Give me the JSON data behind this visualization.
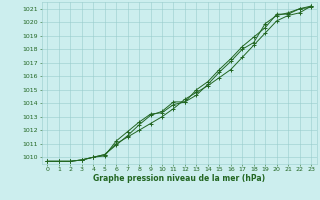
{
  "xlabel": "Graphe pression niveau de la mer (hPa)",
  "ylim": [
    1009.5,
    1021.5
  ],
  "xlim": [
    -0.5,
    23.5
  ],
  "yticks": [
    1010,
    1011,
    1012,
    1013,
    1014,
    1015,
    1016,
    1017,
    1018,
    1019,
    1020,
    1021
  ],
  "xticks": [
    0,
    1,
    2,
    3,
    4,
    5,
    6,
    7,
    8,
    9,
    10,
    11,
    12,
    13,
    14,
    15,
    16,
    17,
    18,
    19,
    20,
    21,
    22,
    23
  ],
  "bg_color": "#cceeee",
  "grid_color": "#99cccc",
  "line_color": "#226622",
  "series1": [
    1009.7,
    1009.7,
    1009.7,
    1009.8,
    1010.0,
    1010.1,
    1011.2,
    1011.9,
    1012.6,
    1013.2,
    1013.3,
    1013.9,
    1014.1,
    1014.6,
    1015.4,
    1016.3,
    1017.1,
    1018.0,
    1018.5,
    1019.9,
    1020.5,
    1020.7,
    1021.0,
    1021.1
  ],
  "series2": [
    1009.7,
    1009.7,
    1009.7,
    1009.8,
    1010.0,
    1010.2,
    1010.9,
    1011.6,
    1012.4,
    1013.1,
    1013.4,
    1014.1,
    1014.1,
    1015.0,
    1015.6,
    1016.5,
    1017.3,
    1018.2,
    1018.9,
    1019.6,
    1020.6,
    1020.6,
    1021.0,
    1021.2
  ],
  "series3": [
    1009.7,
    1009.7,
    1009.7,
    1009.8,
    1010.0,
    1010.2,
    1011.0,
    1011.5,
    1012.0,
    1012.5,
    1013.0,
    1013.6,
    1014.3,
    1014.8,
    1015.3,
    1015.9,
    1016.5,
    1017.4,
    1018.3,
    1019.2,
    1020.1,
    1020.5,
    1020.7,
    1021.2
  ],
  "tick_fontsize": 4.5,
  "xlabel_fontsize": 5.5,
  "marker_size": 2.5,
  "linewidth": 0.7
}
